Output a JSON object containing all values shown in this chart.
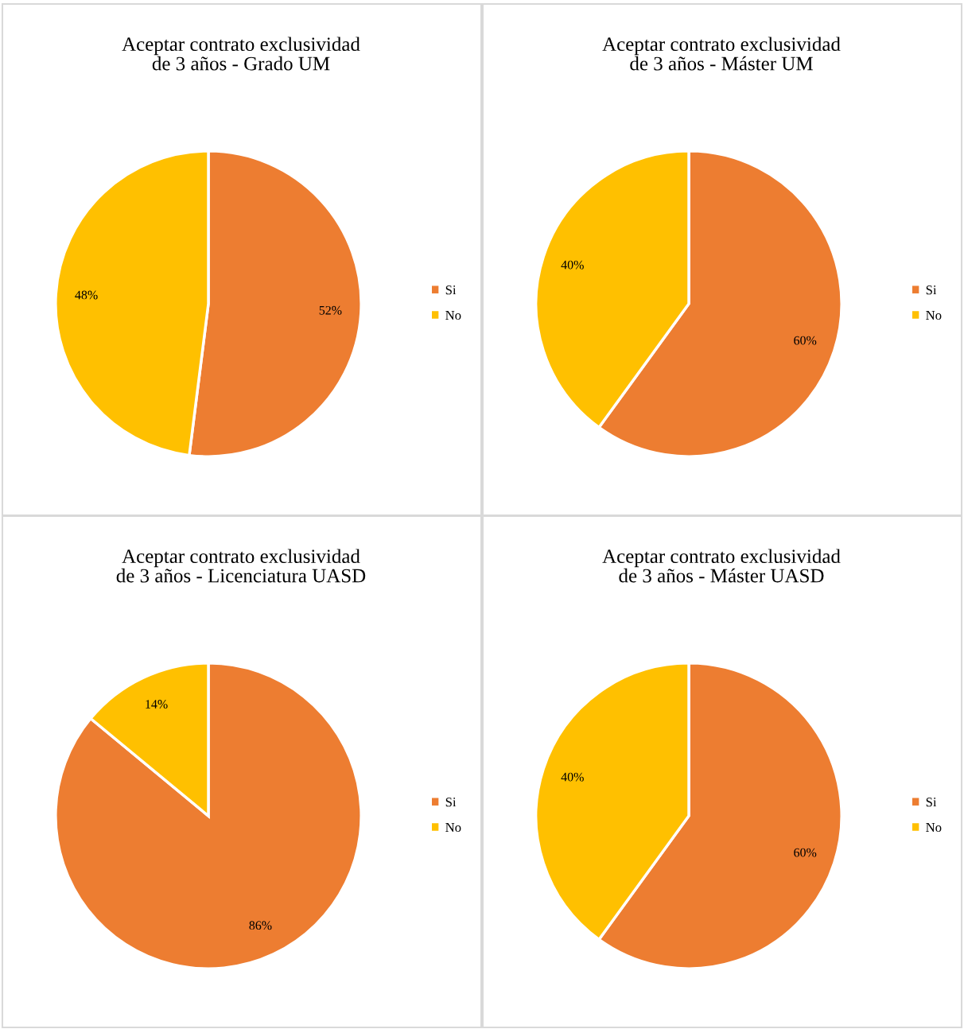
{
  "chart_data": [
    {
      "type": "pie",
      "title": "Aceptar contrato exclusividad de 3 años - Grado UM",
      "categories": [
        "Si",
        "No"
      ],
      "values": [
        52,
        48
      ],
      "colors": [
        "#ed7d31",
        "#ffc000"
      ],
      "value_labels": [
        "52%",
        "48%"
      ],
      "legend": "right"
    },
    {
      "type": "pie",
      "title": "Aceptar contrato exclusividad de 3 años - Máster UM",
      "categories": [
        "Si",
        "No"
      ],
      "values": [
        60,
        40
      ],
      "colors": [
        "#ed7d31",
        "#ffc000"
      ],
      "value_labels": [
        "60%",
        "40%"
      ],
      "legend": "right"
    },
    {
      "type": "pie",
      "title": "Aceptar contrato exclusividad de 3 años - Licenciatura UASD",
      "categories": [
        "Si",
        "No"
      ],
      "values": [
        86,
        14
      ],
      "colors": [
        "#ed7d31",
        "#ffc000"
      ],
      "value_labels": [
        "86%",
        "14%"
      ],
      "legend": "right"
    },
    {
      "type": "pie",
      "title": "Aceptar contrato exclusividad de 3 años - Máster UASD",
      "categories": [
        "Si",
        "No"
      ],
      "values": [
        60,
        40
      ],
      "colors": [
        "#ed7d31",
        "#ffc000"
      ],
      "value_labels": [
        "60%",
        "40%"
      ],
      "legend": "right"
    }
  ]
}
